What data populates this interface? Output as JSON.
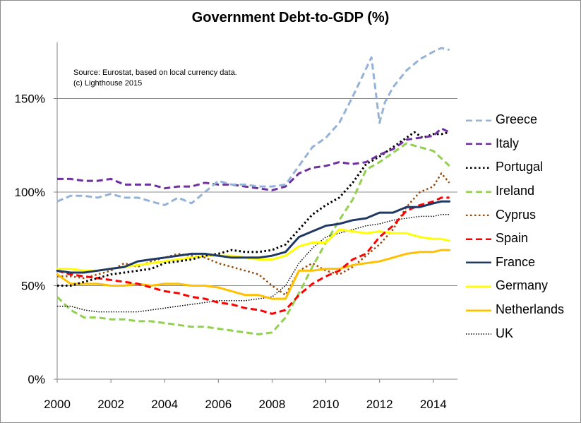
{
  "chart_data": {
    "type": "line",
    "title": "Government Debt-to-GDP (%)",
    "annotation_lines": [
      "Source: Eurostat, based on local currency data.",
      "(c) Lighthouse 2015"
    ],
    "xlim": [
      2000,
      2014.9
    ],
    "ylim": [
      0,
      180
    ],
    "x_ticks": [
      2000,
      2002,
      2004,
      2006,
      2008,
      2010,
      2012,
      2014
    ],
    "x_tick_labels": [
      "2000",
      "2002",
      "2004",
      "2006",
      "2008",
      "2010",
      "2012",
      "2014"
    ],
    "y_ticks": [
      0,
      50,
      100,
      150
    ],
    "y_tick_labels": [
      "0%",
      "50%",
      "100%",
      "150%"
    ],
    "grid": "horizontal",
    "legend_position": "right",
    "series": [
      {
        "name": "Greece",
        "color": "#95b3d7",
        "dash": "dash",
        "width": 3,
        "x": [
          2000,
          2000.5,
          2001,
          2001.5,
          2002,
          2002.5,
          2003,
          2003.5,
          2004,
          2004.5,
          2005,
          2005.5,
          2006,
          2006.5,
          2007,
          2007.5,
          2008,
          2008.5,
          2009,
          2009.5,
          2010,
          2010.5,
          2011,
          2011.3,
          2011.7,
          2012,
          2012.2,
          2012.5,
          2013,
          2013.5,
          2014,
          2014.3,
          2014.6
        ],
        "y": [
          95,
          98,
          98,
          97,
          99,
          97,
          97,
          95,
          93,
          97,
          94,
          100,
          106,
          104,
          104,
          103,
          103,
          104,
          114,
          124,
          129,
          137,
          151,
          160,
          172,
          137,
          148,
          156,
          165,
          171,
          175,
          177,
          176
        ]
      },
      {
        "name": "Italy",
        "color": "#7030a0",
        "dash": "dash",
        "width": 3,
        "x": [
          2000,
          2000.5,
          2001,
          2001.5,
          2002,
          2002.5,
          2003,
          2003.5,
          2004,
          2004.5,
          2005,
          2005.5,
          2006,
          2006.5,
          2007,
          2007.5,
          2008,
          2008.5,
          2009,
          2009.5,
          2010,
          2010.5,
          2011,
          2011.5,
          2012,
          2012.5,
          2013,
          2013.5,
          2014,
          2014.3,
          2014.6
        ],
        "y": [
          107,
          107,
          106,
          106,
          107,
          104,
          104,
          104,
          102,
          103,
          103,
          105,
          104,
          104,
          103,
          102,
          101,
          103,
          110,
          113,
          114,
          116,
          115,
          116,
          120,
          123,
          128,
          129,
          130,
          134,
          132
        ]
      },
      {
        "name": "Portugal",
        "color": "#000000",
        "dash": "dot",
        "width": 3,
        "x": [
          2000,
          2000.5,
          2001,
          2001.5,
          2002,
          2002.5,
          2003,
          2003.5,
          2004,
          2004.5,
          2005,
          2005.5,
          2006,
          2006.5,
          2007,
          2007.5,
          2008,
          2008.5,
          2009,
          2009.5,
          2010,
          2010.5,
          2011,
          2011.5,
          2012,
          2012.5,
          2013,
          2013.3,
          2013.6,
          2014,
          2014.3,
          2014.6
        ],
        "y": [
          50,
          50,
          52,
          54,
          56,
          57,
          58,
          59,
          62,
          63,
          64,
          66,
          67,
          69,
          68,
          68,
          69,
          72,
          80,
          88,
          93,
          97,
          105,
          115,
          119,
          124,
          129,
          132,
          129,
          131,
          131,
          132
        ]
      },
      {
        "name": "Ireland",
        "color": "#92d050",
        "dash": "dash",
        "width": 3,
        "x": [
          2000,
          2000.5,
          2001,
          2001.5,
          2002,
          2002.5,
          2003,
          2003.5,
          2004,
          2004.5,
          2005,
          2005.5,
          2006,
          2006.5,
          2007,
          2007.5,
          2008,
          2008.5,
          2009,
          2009.5,
          2010,
          2010.5,
          2011,
          2011.5,
          2012,
          2012.5,
          2013,
          2013.5,
          2014,
          2014.3,
          2014.6
        ],
        "y": [
          44,
          37,
          33,
          33,
          32,
          32,
          31,
          31,
          30,
          29,
          28,
          28,
          27,
          26,
          25,
          24,
          25,
          33,
          46,
          60,
          73,
          85,
          96,
          112,
          116,
          121,
          126,
          124,
          122,
          118,
          114
        ]
      },
      {
        "name": "Cyprus",
        "color": "#984807",
        "dash": "dot",
        "width": 2.5,
        "x": [
          2000,
          2000.5,
          2001,
          2001.5,
          2002,
          2002.5,
          2003,
          2003.5,
          2004,
          2004.5,
          2005,
          2005.5,
          2006,
          2006.5,
          2007,
          2007.5,
          2008,
          2008.5,
          2009,
          2009.5,
          2010,
          2010.5,
          2011,
          2011.5,
          2012,
          2012.5,
          2013,
          2013.5,
          2014,
          2014.3,
          2014.6
        ],
        "y": [
          55,
          55,
          54,
          56,
          58,
          62,
          60,
          63,
          65,
          67,
          66,
          65,
          62,
          60,
          58,
          56,
          50,
          45,
          58,
          62,
          58,
          56,
          60,
          66,
          72,
          80,
          92,
          100,
          103,
          110,
          105
        ]
      },
      {
        "name": "Spain",
        "color": "#ff0000",
        "dash": "dash",
        "width": 3,
        "x": [
          2000,
          2000.5,
          2001,
          2001.5,
          2002,
          2002.5,
          2003,
          2003.5,
          2004,
          2004.5,
          2005,
          2005.5,
          2006,
          2006.5,
          2007,
          2007.5,
          2008,
          2008.5,
          2009,
          2009.5,
          2010,
          2010.5,
          2011,
          2011.5,
          2012,
          2012.5,
          2013,
          2013.5,
          2014,
          2014.3,
          2014.6
        ],
        "y": [
          58,
          56,
          55,
          54,
          53,
          52,
          51,
          49,
          47,
          46,
          44,
          43,
          41,
          40,
          38,
          37,
          35,
          37,
          45,
          51,
          55,
          58,
          64,
          67,
          76,
          82,
          90,
          93,
          95,
          97,
          97
        ]
      },
      {
        "name": "France",
        "color": "#1f3864",
        "dash": "solid",
        "width": 3,
        "x": [
          2000,
          2000.5,
          2001,
          2001.5,
          2002,
          2002.5,
          2003,
          2003.5,
          2004,
          2004.5,
          2005,
          2005.5,
          2006,
          2006.5,
          2007,
          2007.5,
          2008,
          2008.5,
          2009,
          2009.5,
          2010,
          2010.5,
          2011,
          2011.5,
          2012,
          2012.5,
          2013,
          2013.5,
          2014,
          2014.3,
          2014.6
        ],
        "y": [
          58,
          57,
          57,
          58,
          59,
          60,
          63,
          64,
          65,
          66,
          67,
          67,
          66,
          65,
          65,
          65,
          66,
          68,
          76,
          79,
          82,
          83,
          85,
          86,
          89,
          89,
          92,
          92,
          94,
          95,
          95
        ]
      },
      {
        "name": "Germany",
        "color": "#ffff00",
        "dash": "solid",
        "width": 3,
        "x": [
          2000,
          2000.5,
          2001,
          2001.5,
          2002,
          2002.5,
          2003,
          2003.5,
          2004,
          2004.5,
          2005,
          2005.5,
          2006,
          2006.5,
          2007,
          2007.5,
          2008,
          2008.5,
          2009,
          2009.5,
          2010,
          2010.5,
          2011,
          2011.5,
          2012,
          2012.5,
          2013,
          2013.5,
          2014,
          2014.3,
          2014.6
        ],
        "y": [
          59,
          59,
          58,
          58,
          59,
          60,
          61,
          62,
          63,
          64,
          65,
          66,
          66,
          66,
          65,
          64,
          64,
          66,
          71,
          73,
          73,
          80,
          79,
          78,
          79,
          78,
          78,
          76,
          75,
          75,
          74
        ]
      },
      {
        "name": "Netherlands",
        "color": "#ffc000",
        "dash": "solid",
        "width": 3,
        "x": [
          2000,
          2000.5,
          2001,
          2001.5,
          2002,
          2002.5,
          2003,
          2003.5,
          2004,
          2004.5,
          2005,
          2005.5,
          2006,
          2006.5,
          2007,
          2007.5,
          2008,
          2008.5,
          2009,
          2009.5,
          2010,
          2010.5,
          2011,
          2011.5,
          2012,
          2012.5,
          2013,
          2013.5,
          2014,
          2014.3,
          2014.6
        ],
        "y": [
          56,
          51,
          51,
          51,
          50,
          50,
          51,
          50,
          51,
          51,
          50,
          50,
          49,
          47,
          45,
          45,
          43,
          43,
          58,
          58,
          59,
          59,
          61,
          62,
          63,
          65,
          67,
          68,
          68,
          69,
          69
        ]
      },
      {
        "name": "UK",
        "color": "#000000",
        "dash": "fine",
        "width": 1.5,
        "x": [
          2000,
          2000.5,
          2001,
          2001.5,
          2002,
          2002.5,
          2003,
          2003.5,
          2004,
          2004.5,
          2005,
          2005.5,
          2006,
          2006.5,
          2007,
          2007.5,
          2008,
          2008.5,
          2009,
          2009.5,
          2010,
          2010.5,
          2011,
          2011.5,
          2012,
          2012.5,
          2013,
          2013.5,
          2014,
          2014.3,
          2014.6
        ],
        "y": [
          39,
          39,
          37,
          36,
          36,
          36,
          36,
          37,
          38,
          39,
          40,
          41,
          42,
          42,
          42,
          43,
          44,
          50,
          62,
          70,
          76,
          78,
          80,
          82,
          83,
          85,
          86,
          87,
          87,
          88,
          88
        ]
      }
    ]
  }
}
